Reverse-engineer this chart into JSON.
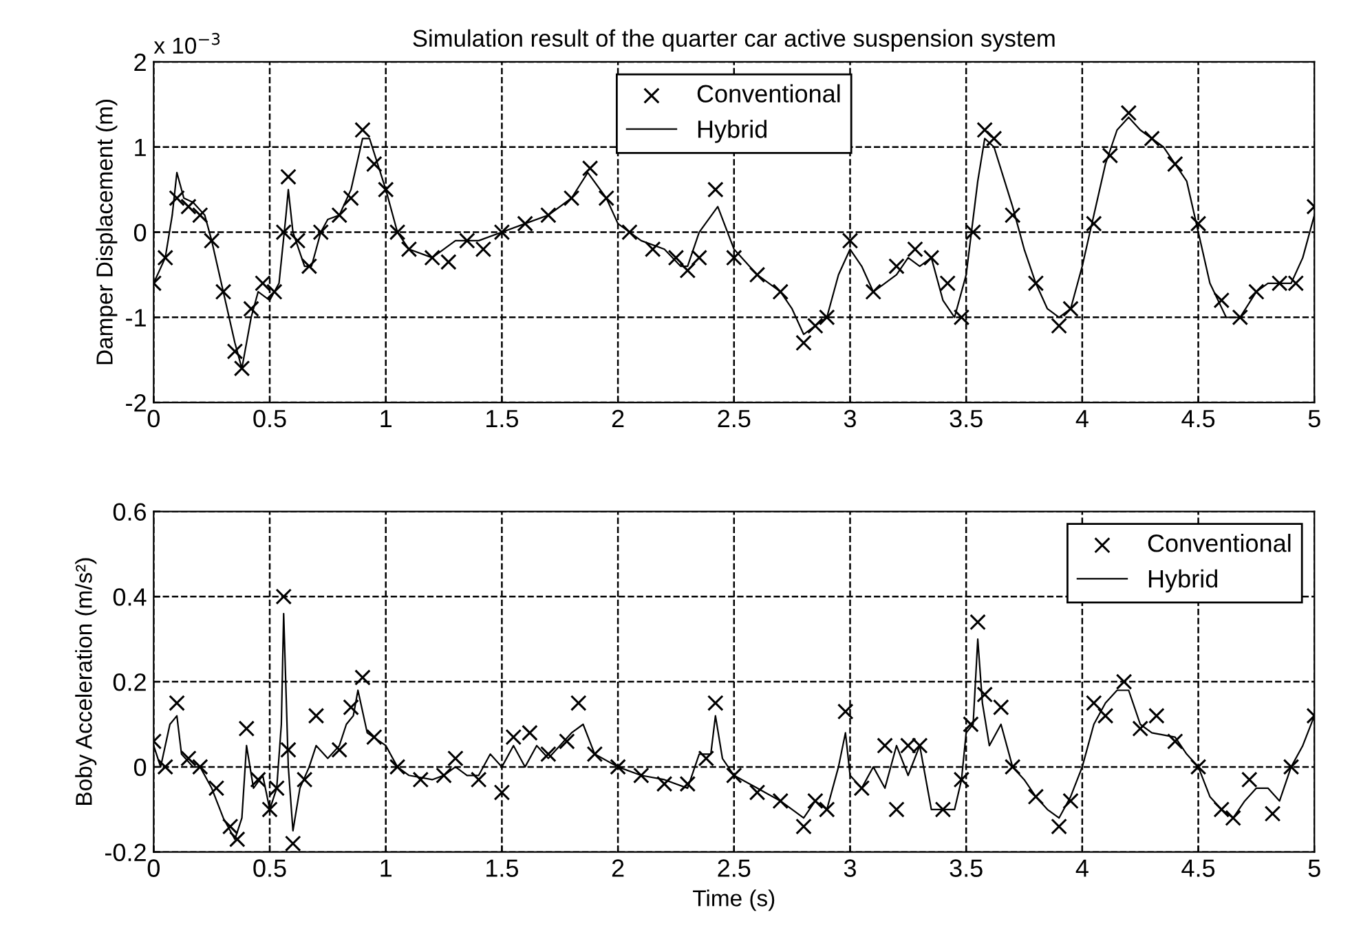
{
  "chart_data": [
    {
      "type": "line",
      "title": "Simulation result of the quarter car active suspension system",
      "ylabel": "Damper Displacement (m)",
      "annotations": [
        "x 10$^{−3}$"
      ],
      "xlim": [
        0,
        5
      ],
      "xticks": [
        0,
        0.5,
        1,
        1.5,
        2,
        2.5,
        3,
        3.5,
        4,
        4.5,
        5
      ],
      "ylim": [
        -2,
        2
      ],
      "yticks": [
        -2,
        -1,
        0,
        1,
        2
      ],
      "grid": true,
      "legend": "top",
      "series": [
        {
          "name": "Conventional",
          "type": "scatter",
          "marker": "cross",
          "color": "#000000",
          "x": [
            0,
            0.05,
            0.1,
            0.15,
            0.2,
            0.25,
            0.3,
            0.35,
            0.38,
            0.42,
            0.47,
            0.52,
            0.56,
            0.58,
            0.62,
            0.67,
            0.72,
            0.8,
            0.85,
            0.9,
            0.95,
            1.0,
            1.05,
            1.1,
            1.2,
            1.27,
            1.35,
            1.42,
            1.5,
            1.6,
            1.7,
            1.8,
            1.88,
            1.95,
            2.05,
            2.15,
            2.25,
            2.3,
            2.35,
            2.42,
            2.5,
            2.6,
            2.7,
            2.8,
            2.85,
            2.9,
            3.0,
            3.1,
            3.2,
            3.28,
            3.35,
            3.42,
            3.48,
            3.53,
            3.58,
            3.62,
            3.7,
            3.8,
            3.9,
            3.95,
            4.05,
            4.12,
            4.2,
            4.3,
            4.4,
            4.5,
            4.6,
            4.68,
            4.75,
            4.85,
            4.92,
            5.0
          ],
          "values": [
            -0.6,
            -0.3,
            0.4,
            0.3,
            0.2,
            -0.1,
            -0.7,
            -1.4,
            -1.6,
            -0.9,
            -0.6,
            -0.7,
            0.0,
            0.65,
            -0.1,
            -0.4,
            0.0,
            0.2,
            0.4,
            1.2,
            0.8,
            0.5,
            0.0,
            -0.2,
            -0.3,
            -0.35,
            -0.1,
            -0.2,
            0.0,
            0.1,
            0.2,
            0.4,
            0.75,
            0.4,
            0.0,
            -0.2,
            -0.3,
            -0.45,
            -0.3,
            0.5,
            -0.3,
            -0.5,
            -0.7,
            -1.3,
            -1.1,
            -1.0,
            -0.1,
            -0.7,
            -0.4,
            -0.2,
            -0.3,
            -0.6,
            -1.0,
            0.0,
            1.2,
            1.1,
            0.2,
            -0.6,
            -1.1,
            -0.9,
            0.1,
            0.9,
            1.4,
            1.1,
            0.8,
            0.1,
            -0.8,
            -1.0,
            -0.7,
            -0.6,
            -0.6,
            0.3
          ]
        },
        {
          "name": "Hybrid",
          "line_style": "solid",
          "color": "#000000",
          "x": [
            0,
            0.05,
            0.08,
            0.1,
            0.13,
            0.17,
            0.22,
            0.25,
            0.3,
            0.35,
            0.38,
            0.42,
            0.45,
            0.5,
            0.54,
            0.57,
            0.58,
            0.6,
            0.65,
            0.68,
            0.72,
            0.75,
            0.8,
            0.85,
            0.9,
            0.93,
            1.0,
            1.05,
            1.1,
            1.2,
            1.3,
            1.4,
            1.5,
            1.6,
            1.7,
            1.8,
            1.87,
            1.95,
            2.0,
            2.1,
            2.2,
            2.27,
            2.3,
            2.35,
            2.43,
            2.5,
            2.6,
            2.7,
            2.75,
            2.8,
            2.85,
            2.9,
            2.95,
            3.0,
            3.05,
            3.1,
            3.15,
            3.2,
            3.25,
            3.3,
            3.35,
            3.4,
            3.45,
            3.5,
            3.55,
            3.58,
            3.62,
            3.7,
            3.75,
            3.8,
            3.85,
            3.9,
            3.95,
            4.0,
            4.05,
            4.1,
            4.15,
            4.2,
            4.25,
            4.35,
            4.45,
            4.5,
            4.55,
            4.62,
            4.68,
            4.75,
            4.8,
            4.9,
            4.95,
            5.0
          ],
          "values": [
            -0.6,
            -0.3,
            0.2,
            0.7,
            0.4,
            0.35,
            0.2,
            -0.1,
            -0.7,
            -1.3,
            -1.6,
            -1.0,
            -0.7,
            -0.8,
            -0.6,
            0.2,
            0.5,
            0.0,
            -0.4,
            -0.4,
            0.0,
            0.15,
            0.2,
            0.5,
            1.1,
            1.1,
            0.5,
            0.0,
            -0.2,
            -0.3,
            -0.1,
            -0.1,
            0.0,
            0.1,
            0.2,
            0.4,
            0.7,
            0.4,
            0.1,
            -0.1,
            -0.2,
            -0.4,
            -0.4,
            0.0,
            0.3,
            -0.2,
            -0.5,
            -0.7,
            -0.9,
            -1.2,
            -1.1,
            -1.0,
            -0.5,
            -0.2,
            -0.4,
            -0.7,
            -0.6,
            -0.5,
            -0.3,
            -0.4,
            -0.3,
            -0.8,
            -1.0,
            -0.5,
            0.6,
            1.1,
            1.0,
            0.3,
            -0.2,
            -0.6,
            -0.9,
            -1.0,
            -0.9,
            -0.4,
            0.2,
            0.8,
            1.2,
            1.35,
            1.2,
            1.0,
            0.6,
            0.0,
            -0.6,
            -1.0,
            -1.0,
            -0.7,
            -0.6,
            -0.6,
            -0.3,
            0.2
          ]
        }
      ]
    },
    {
      "type": "line",
      "xlabel": "Time (s)",
      "ylabel": "Boby Acceleration (m/s²)",
      "xlim": [
        0,
        5
      ],
      "xticks": [
        0,
        0.5,
        1,
        1.5,
        2,
        2.5,
        3,
        3.5,
        4,
        4.5,
        5
      ],
      "ylim": [
        -0.2,
        0.6
      ],
      "yticks": [
        -0.2,
        0,
        0.2,
        0.4,
        0.6
      ],
      "grid": true,
      "legend": "top right",
      "series": [
        {
          "name": "Conventional",
          "type": "scatter",
          "marker": "cross",
          "color": "#000000",
          "x": [
            0,
            0.05,
            0.1,
            0.15,
            0.2,
            0.27,
            0.33,
            0.36,
            0.4,
            0.45,
            0.5,
            0.53,
            0.56,
            0.58,
            0.6,
            0.65,
            0.7,
            0.8,
            0.85,
            0.9,
            0.95,
            1.05,
            1.15,
            1.25,
            1.3,
            1.4,
            1.5,
            1.55,
            1.62,
            1.7,
            1.78,
            1.83,
            1.9,
            2.0,
            2.1,
            2.2,
            2.3,
            2.38,
            2.42,
            2.5,
            2.6,
            2.7,
            2.8,
            2.85,
            2.9,
            2.98,
            3.05,
            3.15,
            3.2,
            3.25,
            3.3,
            3.4,
            3.48,
            3.52,
            3.55,
            3.58,
            3.65,
            3.7,
            3.8,
            3.9,
            3.95,
            4.05,
            4.1,
            4.18,
            4.25,
            4.32,
            4.4,
            4.5,
            4.6,
            4.65,
            4.72,
            4.82,
            4.9,
            5.0
          ],
          "values": [
            0.06,
            0.0,
            0.15,
            0.02,
            0.0,
            -0.05,
            -0.14,
            -0.17,
            0.09,
            -0.03,
            -0.1,
            -0.05,
            0.4,
            0.04,
            -0.18,
            -0.03,
            0.12,
            0.04,
            0.14,
            0.21,
            0.07,
            0.0,
            -0.03,
            -0.02,
            0.02,
            -0.03,
            -0.06,
            0.07,
            0.08,
            0.03,
            0.06,
            0.15,
            0.03,
            0.0,
            -0.02,
            -0.04,
            -0.04,
            0.02,
            0.15,
            -0.02,
            -0.06,
            -0.08,
            -0.14,
            -0.08,
            -0.1,
            0.13,
            -0.05,
            0.05,
            -0.1,
            0.05,
            0.05,
            -0.1,
            -0.03,
            0.1,
            0.34,
            0.17,
            0.14,
            0.0,
            -0.07,
            -0.14,
            -0.08,
            0.15,
            0.12,
            0.2,
            0.09,
            0.12,
            0.06,
            0.0,
            -0.1,
            -0.12,
            -0.03,
            -0.11,
            0.0,
            0.12
          ]
        },
        {
          "name": "Hybrid",
          "line_style": "solid",
          "color": "#000000",
          "x": [
            0,
            0.03,
            0.07,
            0.1,
            0.12,
            0.17,
            0.2,
            0.25,
            0.3,
            0.35,
            0.38,
            0.4,
            0.43,
            0.47,
            0.5,
            0.53,
            0.55,
            0.56,
            0.58,
            0.6,
            0.63,
            0.67,
            0.7,
            0.75,
            0.8,
            0.83,
            0.86,
            0.88,
            0.92,
            1.0,
            1.05,
            1.1,
            1.2,
            1.25,
            1.3,
            1.35,
            1.4,
            1.45,
            1.5,
            1.55,
            1.6,
            1.65,
            1.7,
            1.75,
            1.8,
            1.85,
            1.9,
            2.0,
            2.1,
            2.2,
            2.3,
            2.35,
            2.4,
            2.42,
            2.45,
            2.5,
            2.6,
            2.7,
            2.8,
            2.85,
            2.9,
            2.95,
            2.98,
            3.0,
            3.05,
            3.1,
            3.15,
            3.2,
            3.25,
            3.3,
            3.35,
            3.4,
            3.45,
            3.48,
            3.5,
            3.53,
            3.55,
            3.57,
            3.6,
            3.65,
            3.7,
            3.75,
            3.8,
            3.85,
            3.9,
            3.95,
            4.0,
            4.05,
            4.1,
            4.15,
            4.2,
            4.25,
            4.3,
            4.4,
            4.45,
            4.5,
            4.55,
            4.6,
            4.65,
            4.7,
            4.75,
            4.8,
            4.85,
            4.9,
            4.95,
            5.0
          ],
          "values": [
            0.05,
            0.0,
            0.1,
            0.12,
            0.03,
            0.0,
            0.0,
            -0.05,
            -0.12,
            -0.17,
            -0.12,
            0.05,
            -0.05,
            -0.02,
            -0.1,
            -0.05,
            0.1,
            0.36,
            0.0,
            -0.15,
            -0.05,
            0.0,
            0.05,
            0.02,
            0.05,
            0.1,
            0.12,
            0.18,
            0.08,
            0.05,
            0.0,
            -0.02,
            -0.03,
            -0.02,
            0.0,
            -0.02,
            -0.02,
            0.03,
            0.0,
            0.05,
            0.0,
            0.05,
            0.02,
            0.05,
            0.08,
            0.1,
            0.03,
            0.0,
            -0.02,
            -0.03,
            -0.05,
            0.03,
            0.03,
            0.12,
            0.02,
            -0.02,
            -0.05,
            -0.08,
            -0.12,
            -0.08,
            -0.1,
            0.0,
            0.08,
            -0.02,
            -0.05,
            0.0,
            -0.05,
            0.05,
            -0.02,
            0.05,
            -0.1,
            -0.1,
            -0.1,
            -0.03,
            0.08,
            0.1,
            0.3,
            0.15,
            0.05,
            0.1,
            0.0,
            -0.03,
            -0.07,
            -0.1,
            -0.12,
            -0.07,
            0.0,
            0.1,
            0.15,
            0.18,
            0.18,
            0.1,
            0.08,
            0.07,
            0.03,
            0.0,
            -0.07,
            -0.1,
            -0.12,
            -0.08,
            -0.05,
            -0.05,
            -0.08,
            0.0,
            0.05,
            0.12
          ]
        }
      ]
    }
  ]
}
